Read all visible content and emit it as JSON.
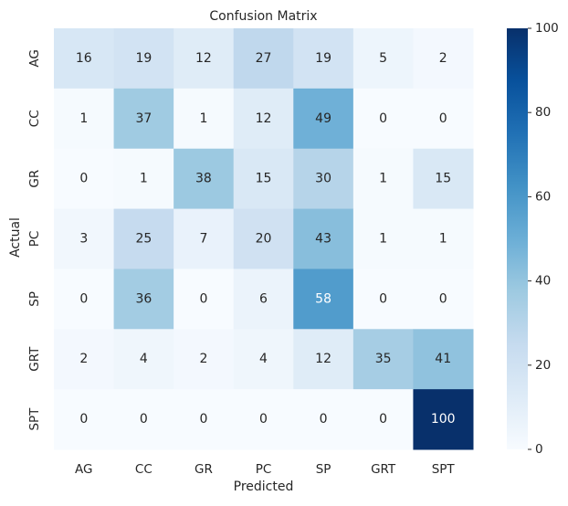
{
  "chart_data": {
    "type": "heatmap",
    "title": "Confusion Matrix",
    "xlabel": "Predicted",
    "ylabel": "Actual",
    "x_categories": [
      "AG",
      "CC",
      "GR",
      "PC",
      "SP",
      "GRT",
      "SPT"
    ],
    "y_categories": [
      "AG",
      "CC",
      "GR",
      "PC",
      "SP",
      "GRT",
      "SPT"
    ],
    "values": [
      [
        16,
        19,
        12,
        27,
        19,
        5,
        2
      ],
      [
        1,
        37,
        1,
        12,
        49,
        0,
        0
      ],
      [
        0,
        1,
        38,
        15,
        30,
        1,
        15
      ],
      [
        3,
        25,
        7,
        20,
        43,
        1,
        1
      ],
      [
        0,
        36,
        0,
        6,
        58,
        0,
        0
      ],
      [
        2,
        4,
        2,
        4,
        12,
        35,
        41
      ],
      [
        0,
        0,
        0,
        0,
        0,
        0,
        100
      ]
    ],
    "value_range": [
      0,
      100
    ],
    "colormap": "Blues",
    "colorbar_ticks": [
      0,
      20,
      40,
      60,
      80,
      100
    ],
    "grid": false
  }
}
